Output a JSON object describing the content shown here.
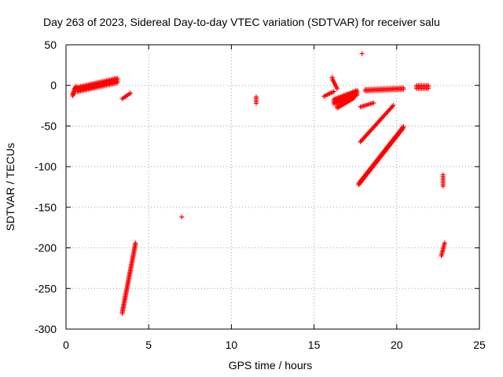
{
  "chart_data": {
    "type": "scatter",
    "title": "Day 263 of 2023, Sidereal Day-to-day VTEC variation (SDTVAR) for receiver salu",
    "xlabel": "GPS time / hours",
    "ylabel": "SDTVAR / TECUs",
    "xlim": [
      0,
      25
    ],
    "ylim": [
      -300,
      50
    ],
    "xticks": [
      0,
      5,
      10,
      15,
      20,
      25
    ],
    "yticks": [
      50,
      0,
      -50,
      -100,
      -150,
      -200,
      -250,
      -300
    ],
    "grid": true,
    "marker": "plus",
    "color": "#ff0000",
    "series": [
      {
        "name": "",
        "type": "band",
        "x0": 0.7,
        "x1": 3.1,
        "y0": -5,
        "y1": 6,
        "width": 8
      },
      {
        "name": "",
        "type": "band",
        "x0": 0.4,
        "x1": 0.6,
        "y0": -12,
        "y1": -2,
        "width": 4
      },
      {
        "name": "",
        "type": "band",
        "x0": 3.4,
        "x1": 3.9,
        "y0": -17,
        "y1": -10,
        "width": 3
      },
      {
        "name": "",
        "type": "band",
        "x0": 3.4,
        "x1": 4.2,
        "y0": -280,
        "y1": -195,
        "width": 4
      },
      {
        "name": "",
        "type": "band",
        "x0": 11.5,
        "x1": 11.5,
        "y0": -22,
        "y1": -14,
        "width": 2
      },
      {
        "name": "",
        "type": "band",
        "x0": 15.6,
        "x1": 16.2,
        "y0": -14,
        "y1": -8,
        "width": 3
      },
      {
        "name": "",
        "type": "band",
        "x0": 16.2,
        "x1": 17.6,
        "y0": -20,
        "y1": -9,
        "width": 8
      },
      {
        "name": "",
        "type": "band",
        "x0": 16.4,
        "x1": 17.4,
        "y0": -27,
        "y1": -15,
        "width": 4
      },
      {
        "name": "",
        "type": "band",
        "x0": 16.1,
        "x1": 16.4,
        "y0": 8,
        "y1": -4,
        "width": 2
      },
      {
        "name": "",
        "type": "band",
        "x0": 17.8,
        "x1": 18.6,
        "y0": -27,
        "y1": -22,
        "width": 3
      },
      {
        "name": "",
        "type": "band",
        "x0": 18.1,
        "x1": 20.4,
        "y0": -6,
        "y1": -4,
        "width": 4
      },
      {
        "name": "",
        "type": "band",
        "x0": 21.2,
        "x1": 21.9,
        "y0": -2,
        "y1": -2,
        "width": 6
      },
      {
        "name": "",
        "type": "band",
        "x0": 17.8,
        "x1": 19.8,
        "y0": -70,
        "y1": -25,
        "width": 3
      },
      {
        "name": "",
        "type": "band",
        "x0": 17.7,
        "x1": 20.4,
        "y0": -122,
        "y1": -52,
        "width": 5
      },
      {
        "name": "",
        "type": "band",
        "x0": 22.8,
        "x1": 22.8,
        "y0": -124,
        "y1": -110,
        "width": 2
      },
      {
        "name": "",
        "type": "band",
        "x0": 22.7,
        "x1": 22.9,
        "y0": -210,
        "y1": -194,
        "width": 2
      },
      {
        "name": "",
        "type": "points",
        "x": [
          7.0,
          17.9,
          0.5,
          0.5,
          16.1
        ],
        "y": [
          -162,
          39,
          -10,
          -4,
          10
        ]
      }
    ]
  }
}
